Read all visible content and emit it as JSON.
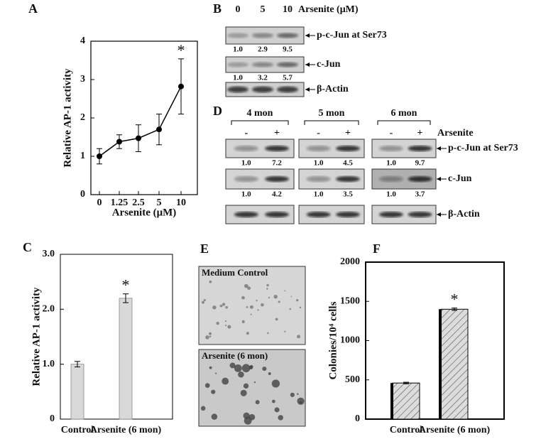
{
  "chart_data": [
    {
      "panel": "A",
      "type": "line",
      "ylabel": "Relative AP-1 activity",
      "xlabel": "Arsenite (μM)",
      "categories": [
        "0",
        "1.25",
        "2.5",
        "5",
        "10"
      ],
      "values": [
        1.0,
        1.38,
        1.47,
        1.7,
        2.82
      ],
      "errors": [
        0.2,
        0.18,
        0.35,
        0.4,
        0.72
      ],
      "color": "#000000",
      "ylim": [
        0,
        4
      ],
      "yticks": [
        0,
        1,
        2,
        3,
        4
      ],
      "annotation": "*"
    },
    {
      "panel": "C",
      "type": "bar",
      "ylabel": "Relative AP-1 activity",
      "categories": [
        "Control",
        "Arsenite (6 mon)"
      ],
      "values": [
        1.0,
        2.2
      ],
      "errors": [
        0.05,
        0.08
      ],
      "color": "#d9d9d9",
      "ylim": [
        0,
        3
      ],
      "yticks": [
        0,
        {
          "value": 1,
          "label": "1.0"
        },
        {
          "value": 2,
          "label": "2.0"
        },
        {
          "value": 3,
          "label": "3.0"
        }
      ],
      "annotation": "*"
    },
    {
      "panel": "F",
      "type": "bar",
      "ylabel": "Colonies/10⁴ cells",
      "categories": [
        "Control",
        "Arsenite (6 mon)"
      ],
      "values": [
        460,
        1400
      ],
      "errors": [
        10,
        15
      ],
      "color": "#c8c8c8",
      "hatch": true,
      "ylim": [
        0,
        2000
      ],
      "yticks": [
        0,
        500,
        1000,
        1500,
        2000
      ],
      "annotation": "*"
    }
  ],
  "blot_B": {
    "panel": "B",
    "lanes": [
      "0",
      "5",
      "10"
    ],
    "treatment": "Arsenite (μM)",
    "rows": [
      {
        "label": "p-c-Jun at Ser73",
        "quant": [
          "1.0",
          "2.9",
          "9.5"
        ]
      },
      {
        "label": "c-Jun",
        "quant": [
          "1.0",
          "3.2",
          "5.7"
        ]
      },
      {
        "label": "β-Actin"
      }
    ]
  },
  "blot_D": {
    "panel": "D",
    "treatment": "Arsenite",
    "rows": [
      "p-c-Jun at Ser73",
      "c-Jun",
      "β-Actin"
    ],
    "groups": [
      {
        "label": "4 mon",
        "lanes": [
          "-",
          "+"
        ],
        "quant": [
          [
            "1.0",
            "7.2"
          ],
          [
            "1.0",
            "4.2"
          ]
        ]
      },
      {
        "label": "5 mon",
        "lanes": [
          "-",
          "+"
        ],
        "quant": [
          [
            "1.0",
            "4.5"
          ],
          [
            "1.0",
            "3.5"
          ]
        ]
      },
      {
        "label": "6 mon",
        "lanes": [
          "-",
          "+"
        ],
        "quant": [
          [
            "1.0",
            "9.7"
          ],
          [
            "1.0",
            "3.7"
          ]
        ]
      }
    ]
  },
  "image_E": {
    "panel": "E",
    "images": [
      "Medium Control",
      "Arsenite (6 mon)"
    ]
  }
}
